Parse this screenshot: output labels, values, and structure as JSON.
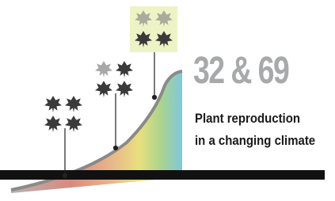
{
  "header": {
    "title": "32 & 69",
    "subtitle_lines": [
      "Plant reproduction",
      "in a changing climate"
    ]
  }
}
